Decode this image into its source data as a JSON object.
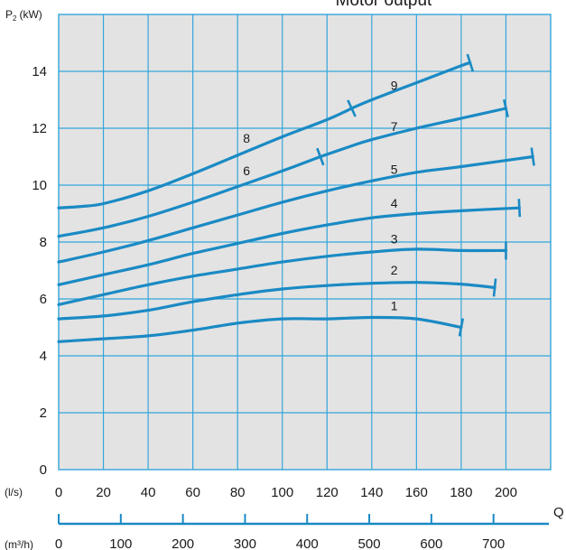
{
  "chart_data": {
    "type": "line",
    "title": "Motor output",
    "ylabel": "P",
    "ylabel_sub": "2",
    "ylabel_unit": "(kW)",
    "xlabel": "Q",
    "x_unit": "(l/s)",
    "x2_unit": "(m³/h)",
    "xlim": [
      0,
      220
    ],
    "ylim": [
      0,
      16
    ],
    "x_ticks": [
      0,
      20,
      40,
      60,
      80,
      100,
      120,
      140,
      160,
      180,
      200
    ],
    "y_ticks": [
      0,
      2,
      4,
      6,
      8,
      10,
      12,
      14
    ],
    "x2_ticks": [
      0,
      100,
      200,
      300,
      400,
      500,
      600,
      700
    ],
    "grid": true,
    "colors": {
      "plot_background": "#e3e3e3",
      "grid": "#33a6db",
      "curve": "#1a8ac4",
      "axis2": "#1a8ac4"
    },
    "series": [
      {
        "name": "1",
        "x": [
          0,
          20,
          40,
          60,
          80,
          100,
          120,
          140,
          160,
          180
        ],
        "y": [
          4.5,
          4.6,
          4.7,
          4.9,
          5.15,
          5.3,
          5.3,
          5.35,
          5.3,
          5.0
        ]
      },
      {
        "name": "2",
        "x": [
          0,
          20,
          40,
          60,
          80,
          100,
          120,
          140,
          160,
          180,
          195
        ],
        "y": [
          5.3,
          5.4,
          5.6,
          5.9,
          6.15,
          6.35,
          6.47,
          6.55,
          6.58,
          6.52,
          6.4
        ]
      },
      {
        "name": "3",
        "x": [
          0,
          20,
          40,
          60,
          80,
          100,
          120,
          140,
          160,
          180,
          200
        ],
        "y": [
          5.8,
          6.15,
          6.5,
          6.8,
          7.05,
          7.3,
          7.5,
          7.65,
          7.75,
          7.7,
          7.7
        ]
      },
      {
        "name": "4",
        "x": [
          0,
          20,
          40,
          60,
          80,
          100,
          120,
          140,
          160,
          180,
          206
        ],
        "y": [
          6.5,
          6.85,
          7.2,
          7.6,
          7.95,
          8.3,
          8.6,
          8.85,
          9.0,
          9.1,
          9.2
        ]
      },
      {
        "name": "5",
        "x": [
          0,
          20,
          40,
          60,
          80,
          100,
          120,
          140,
          160,
          180,
          212
        ],
        "y": [
          7.3,
          7.65,
          8.05,
          8.5,
          8.95,
          9.4,
          9.8,
          10.15,
          10.45,
          10.65,
          11.0
        ]
      },
      {
        "name": "6",
        "x": [
          0,
          20,
          40,
          60,
          80,
          100,
          117
        ],
        "y": [
          8.2,
          8.5,
          8.9,
          9.4,
          9.95,
          10.5,
          11.0
        ]
      },
      {
        "name": "7",
        "x": [
          117,
          130,
          140,
          160,
          180,
          200
        ],
        "y": [
          11.0,
          11.35,
          11.6,
          12.0,
          12.35,
          12.7
        ]
      },
      {
        "name": "8",
        "x": [
          0,
          10,
          20,
          40,
          60,
          80,
          100,
          120,
          131
        ],
        "y": [
          9.2,
          9.25,
          9.35,
          9.8,
          10.4,
          11.05,
          11.7,
          12.3,
          12.7
        ]
      },
      {
        "name": "9",
        "x": [
          131,
          140,
          160,
          180,
          184
        ],
        "y": [
          12.7,
          13.0,
          13.6,
          14.2,
          14.3
        ]
      }
    ],
    "curve_labels": [
      {
        "text": "1",
        "x": 150,
        "y": 5.6
      },
      {
        "text": "2",
        "x": 150,
        "y": 6.85
      },
      {
        "text": "3",
        "x": 150,
        "y": 7.95
      },
      {
        "text": "4",
        "x": 150,
        "y": 9.2
      },
      {
        "text": "5",
        "x": 150,
        "y": 10.4
      },
      {
        "text": "6",
        "x": 84,
        "y": 10.35
      },
      {
        "text": "7",
        "x": 150,
        "y": 11.9
      },
      {
        "text": "8",
        "x": 84,
        "y": 11.5
      },
      {
        "text": "9",
        "x": 150,
        "y": 13.35
      }
    ]
  }
}
